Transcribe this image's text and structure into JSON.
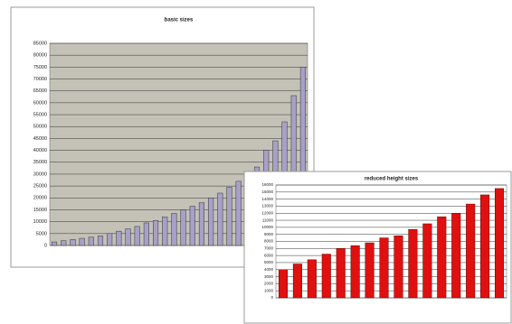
{
  "chart_data": [
    {
      "type": "bar",
      "title": "basic sizes",
      "categories": [
        null,
        null,
        null,
        null,
        null,
        null,
        null,
        null,
        null,
        null,
        null,
        null,
        null,
        null,
        null,
        null,
        null,
        null,
        null,
        null,
        null,
        null,
        null,
        null,
        null,
        null,
        null,
        null
      ],
      "values": [
        1500,
        2000,
        2500,
        3000,
        3500,
        4000,
        5000,
        6000,
        7000,
        8000,
        9500,
        10500,
        12000,
        13500,
        15000,
        16500,
        18000,
        20000,
        22000,
        24500,
        27000,
        30000,
        33000,
        40000,
        44000,
        52000,
        63000,
        75000
      ],
      "color": "#a8a0c8",
      "ylim": [
        0,
        85000
      ],
      "yticks": [
        0,
        5000,
        10000,
        15000,
        20000,
        25000,
        30000,
        35000,
        40000,
        45000,
        50000,
        55000,
        60000,
        65000,
        70000,
        75000,
        80000,
        85000
      ],
      "grid": true
    },
    {
      "type": "bar",
      "title": "reduced height sizes",
      "categories": [
        null,
        null,
        null,
        null,
        null,
        null,
        null,
        null,
        null,
        null,
        null,
        null,
        null,
        null,
        null,
        null
      ],
      "values": [
        4000,
        4800,
        5400,
        6200,
        7000,
        7400,
        7800,
        8500,
        8800,
        9700,
        10500,
        11500,
        12000,
        13300,
        14600,
        15500
      ],
      "color": "#e01010",
      "ylim": [
        0,
        16000
      ],
      "yticks": [
        0,
        1000,
        2000,
        3000,
        4000,
        5000,
        6000,
        7000,
        8000,
        9000,
        10000,
        11000,
        12000,
        13000,
        14000,
        15000,
        16000
      ],
      "grid": true
    }
  ]
}
